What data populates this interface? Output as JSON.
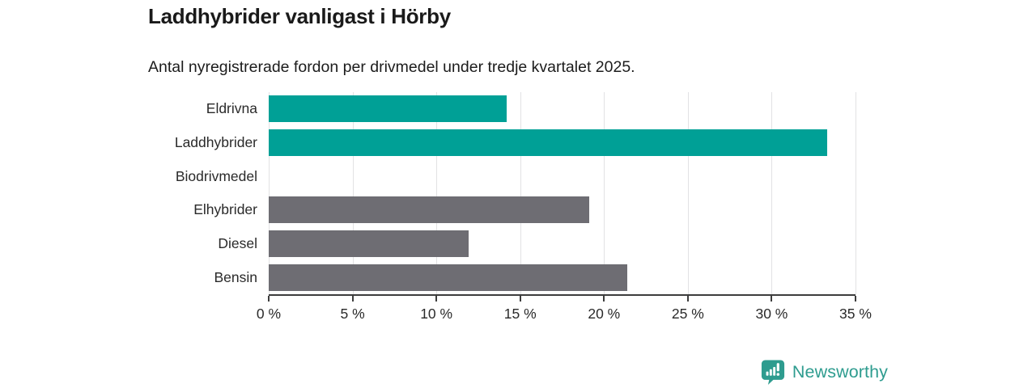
{
  "header": {
    "title": "Laddhybrider vanligast i Hörby",
    "subtitle": "Antal nyregistrerade fordon per drivmedel under tredje kvartalet 2025."
  },
  "chart_data": {
    "type": "bar",
    "orientation": "horizontal",
    "title": "Laddhybrider vanligast i Hörby",
    "subtitle": "Antal nyregistrerade fordon per drivmedel under tredje kvartalet 2025.",
    "categories": [
      "Eldrivna",
      "Laddhybrider",
      "Biodrivmedel",
      "Elhybrider",
      "Diesel",
      "Bensin"
    ],
    "values": [
      14.2,
      33.3,
      0,
      19.1,
      11.9,
      21.4
    ],
    "unit": "%",
    "bar_colors": [
      "#00A096",
      "#00A096",
      "#6E6D73",
      "#6E6D73",
      "#6E6D73",
      "#6E6D73"
    ],
    "highlight_color": "#00A096",
    "muted_color": "#6E6D73",
    "xlim": [
      0,
      35
    ],
    "x_ticks": [
      0,
      5,
      10,
      15,
      20,
      25,
      30,
      35
    ],
    "x_tick_labels": [
      "0 %",
      "5 %",
      "10 %",
      "15 %",
      "20 %",
      "25 %",
      "30 %",
      "35 %"
    ],
    "xlabel": "",
    "ylabel": "",
    "grid": true,
    "legend": false
  },
  "footer": {
    "brand": "Newsworthy",
    "brand_color": "#2E9C8F",
    "logo_icon": "newsworthy-bubble-barchart-icon"
  }
}
